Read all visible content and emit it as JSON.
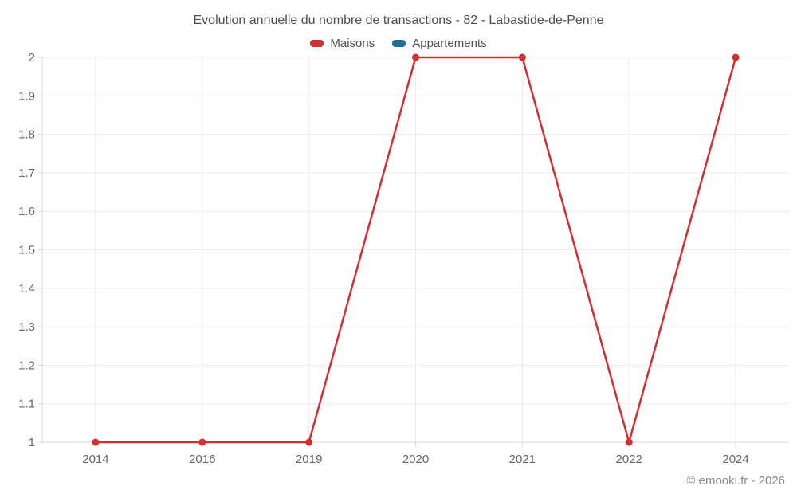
{
  "credits": "© emooki.fr - 2026",
  "colors": {
    "maisons": "#d32f2f",
    "appartements": "#1a6f9c",
    "gridline": "#ececec",
    "axis_line": "#d8d8d8",
    "axis_label": "#666666",
    "title": "#4d4d4d",
    "credits": "#8a8a8a"
  },
  "chart_data": {
    "type": "line",
    "title": "Evolution annuelle du nombre de transactions - 82 - Labastide-de-Penne",
    "categories": [
      "2014",
      "2016",
      "2019",
      "2020",
      "2021",
      "2022",
      "2024"
    ],
    "series": [
      {
        "name": "Maisons",
        "color": "#d32f2f",
        "values": [
          1,
          1,
          1,
          2,
          2,
          1,
          2
        ]
      },
      {
        "name": "Appartements",
        "color": "#1a6f9c",
        "values": []
      }
    ],
    "xlabel": "",
    "ylabel": "",
    "ylim": [
      1,
      2
    ],
    "ytick_step": 0.1,
    "ytick_labels": [
      "1",
      "1.1",
      "1.2",
      "1.3",
      "1.4",
      "1.5",
      "1.6",
      "1.7",
      "1.8",
      "1.9",
      "2"
    ],
    "grid": true,
    "legend_position": "top"
  }
}
